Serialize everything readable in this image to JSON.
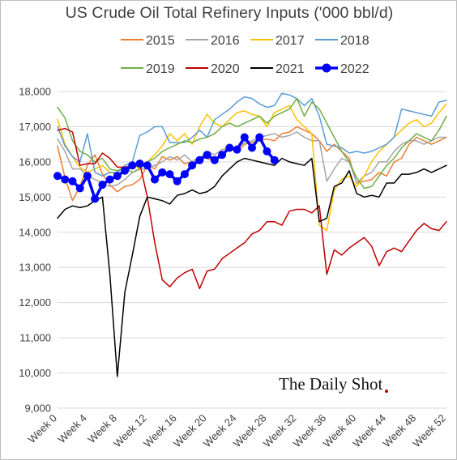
{
  "chart_data": {
    "type": "line",
    "title": "US Crude Oil Total Refinery Inputs ('000 bbl/d)",
    "xlabel": "",
    "ylabel": "",
    "xlim": [
      0,
      52
    ],
    "ylim": [
      9000,
      18000
    ],
    "x_ticks": [
      "Week 0",
      "Week 4",
      "Week 8",
      "Week 12",
      "Week 16",
      "Week 20",
      "Week 24",
      "Week 28",
      "Week 32",
      "Week 36",
      "Week 40",
      "Week 44",
      "Week 48",
      "Week 52"
    ],
    "y_ticks": [
      "9,000",
      "10,000",
      "11,000",
      "12,000",
      "13,000",
      "14,000",
      "15,000",
      "16,000",
      "17,000",
      "18,000"
    ],
    "grid": "horizontal",
    "legend_position": "top",
    "watermark": "The Daily Shot",
    "series": [
      {
        "name": "2015",
        "color": "#ED7D31",
        "width": 1.5,
        "markers": false,
        "values": [
          16450,
          15550,
          14900,
          15300,
          15900,
          16200,
          15650,
          15350,
          15150,
          15300,
          15350,
          15500,
          15900,
          15800,
          16150,
          16050,
          16150,
          15950,
          16000,
          16150,
          16100,
          16000,
          16350,
          16400,
          16300,
          16500,
          16550,
          16600,
          16650,
          16600,
          16800,
          16850,
          17000,
          16900,
          16800,
          16600,
          16300,
          16500,
          16300,
          16100,
          15400,
          15450,
          15500,
          15700,
          15600,
          16000,
          16100,
          16500,
          16700,
          16600,
          16500,
          16600,
          16700
        ]
      },
      {
        "name": "2016",
        "color": "#A5A5A5",
        "width": 1.5,
        "markers": false,
        "values": [
          16650,
          16300,
          15800,
          15800,
          15600,
          15500,
          15400,
          15300,
          15350,
          15500,
          15700,
          15800,
          15800,
          15900,
          16000,
          16150,
          16050,
          16200,
          16000,
          16100,
          16300,
          16200,
          16350,
          16400,
          16400,
          16550,
          16600,
          16700,
          16750,
          16800,
          16700,
          16750,
          16850,
          16700,
          16600,
          16600,
          15450,
          15800,
          16100,
          16000,
          15400,
          15600,
          15700,
          16000,
          16000,
          16300,
          16500,
          16600,
          16600,
          16500,
          16600,
          16700,
          16700
        ]
      },
      {
        "name": "2017",
        "color": "#FFC000",
        "width": 1.5,
        "markers": false,
        "values": [
          17200,
          16500,
          16150,
          15850,
          15700,
          15800,
          15900,
          15700,
          15650,
          15750,
          15950,
          15800,
          16000,
          16200,
          16450,
          16800,
          16600,
          16800,
          16500,
          17000,
          17350,
          17100,
          17000,
          17200,
          17400,
          17450,
          17350,
          17300,
          17000,
          17400,
          17500,
          17600,
          17200,
          17000,
          16800,
          14200,
          14050,
          15200,
          15500,
          15600,
          15300,
          15600,
          16000,
          16300,
          16500,
          16700,
          16900,
          17100,
          17200,
          17000,
          17100,
          17400,
          17650
        ]
      },
      {
        "name": "2018",
        "color": "#5B9BD5",
        "width": 1.5,
        "markers": false,
        "values": [
          17000,
          16450,
          16150,
          16000,
          16800,
          15700,
          15600,
          15700,
          15700,
          15900,
          16000,
          16750,
          16850,
          17000,
          17000,
          16550,
          16550,
          16550,
          16700,
          16900,
          16700,
          17200,
          17350,
          17500,
          17700,
          17850,
          17800,
          17650,
          17550,
          17600,
          17950,
          17900,
          17800,
          17600,
          17800,
          17300,
          16500,
          16450,
          16400,
          16250,
          16300,
          16250,
          16300,
          16400,
          16500,
          16700,
          17500,
          17450,
          17400,
          17350,
          17300,
          17700,
          17750
        ]
      },
      {
        "name": "2019",
        "color": "#70AD47",
        "width": 1.5,
        "markers": false,
        "values": [
          17550,
          17250,
          16600,
          16300,
          16200,
          16000,
          16100,
          15800,
          15750,
          15850,
          15700,
          15800,
          16000,
          16100,
          16300,
          16400,
          16500,
          16600,
          16550,
          16650,
          16700,
          16800,
          17000,
          17100,
          17000,
          17100,
          17200,
          17300,
          17100,
          17300,
          17400,
          17500,
          17800,
          17300,
          17700,
          17500,
          17100,
          16700,
          16300,
          16000,
          15550,
          15250,
          15300,
          15600,
          15900,
          16100,
          16400,
          16600,
          16800,
          16700,
          16600,
          16900,
          17300
        ]
      },
      {
        "name": "2020",
        "color": "#C00000",
        "width": 1.5,
        "markers": false,
        "values": [
          16900,
          16950,
          16850,
          15900,
          15950,
          15950,
          16250,
          16100,
          15850,
          15850,
          15900,
          15950,
          15000,
          13700,
          12650,
          12450,
          12700,
          12850,
          12950,
          12400,
          12900,
          12950,
          13250,
          13400,
          13550,
          13700,
          13950,
          14050,
          14300,
          14300,
          14200,
          14600,
          14650,
          14650,
          14550,
          14750,
          12800,
          13500,
          13350,
          13550,
          13700,
          13850,
          13600,
          13050,
          13450,
          13550,
          13450,
          13750,
          14050,
          14250,
          14100,
          14050,
          14300
        ]
      },
      {
        "name": "2021",
        "color": "#000000",
        "width": 1.5,
        "markers": false,
        "values": [
          14400,
          14650,
          14750,
          14700,
          14750,
          14900,
          15000,
          12800,
          9900,
          12300,
          13350,
          14450,
          15000,
          14950,
          14900,
          14800,
          15050,
          15100,
          15200,
          15100,
          15150,
          15300,
          15600,
          15800,
          16000,
          16100,
          16050,
          16000,
          15950,
          15900,
          16100,
          16000,
          15950,
          15900,
          16100,
          14300,
          14400,
          15300,
          15400,
          15750,
          15100,
          15000,
          15050,
          15000,
          15400,
          15400,
          15650,
          15650,
          15700,
          15800,
          15700,
          15800,
          15900
        ]
      },
      {
        "name": "2022",
        "color": "#0000FF",
        "width": 3.5,
        "markers": true,
        "values": [
          15600,
          15500,
          15450,
          15250,
          15600,
          14950,
          15350,
          15500,
          15600,
          15750,
          15900,
          15950,
          15900,
          15500,
          15700,
          15650,
          15450,
          15650,
          15900,
          16050,
          16200,
          16050,
          16200,
          16400,
          16350,
          16700,
          16400,
          16700,
          16300,
          16050
        ]
      }
    ]
  }
}
